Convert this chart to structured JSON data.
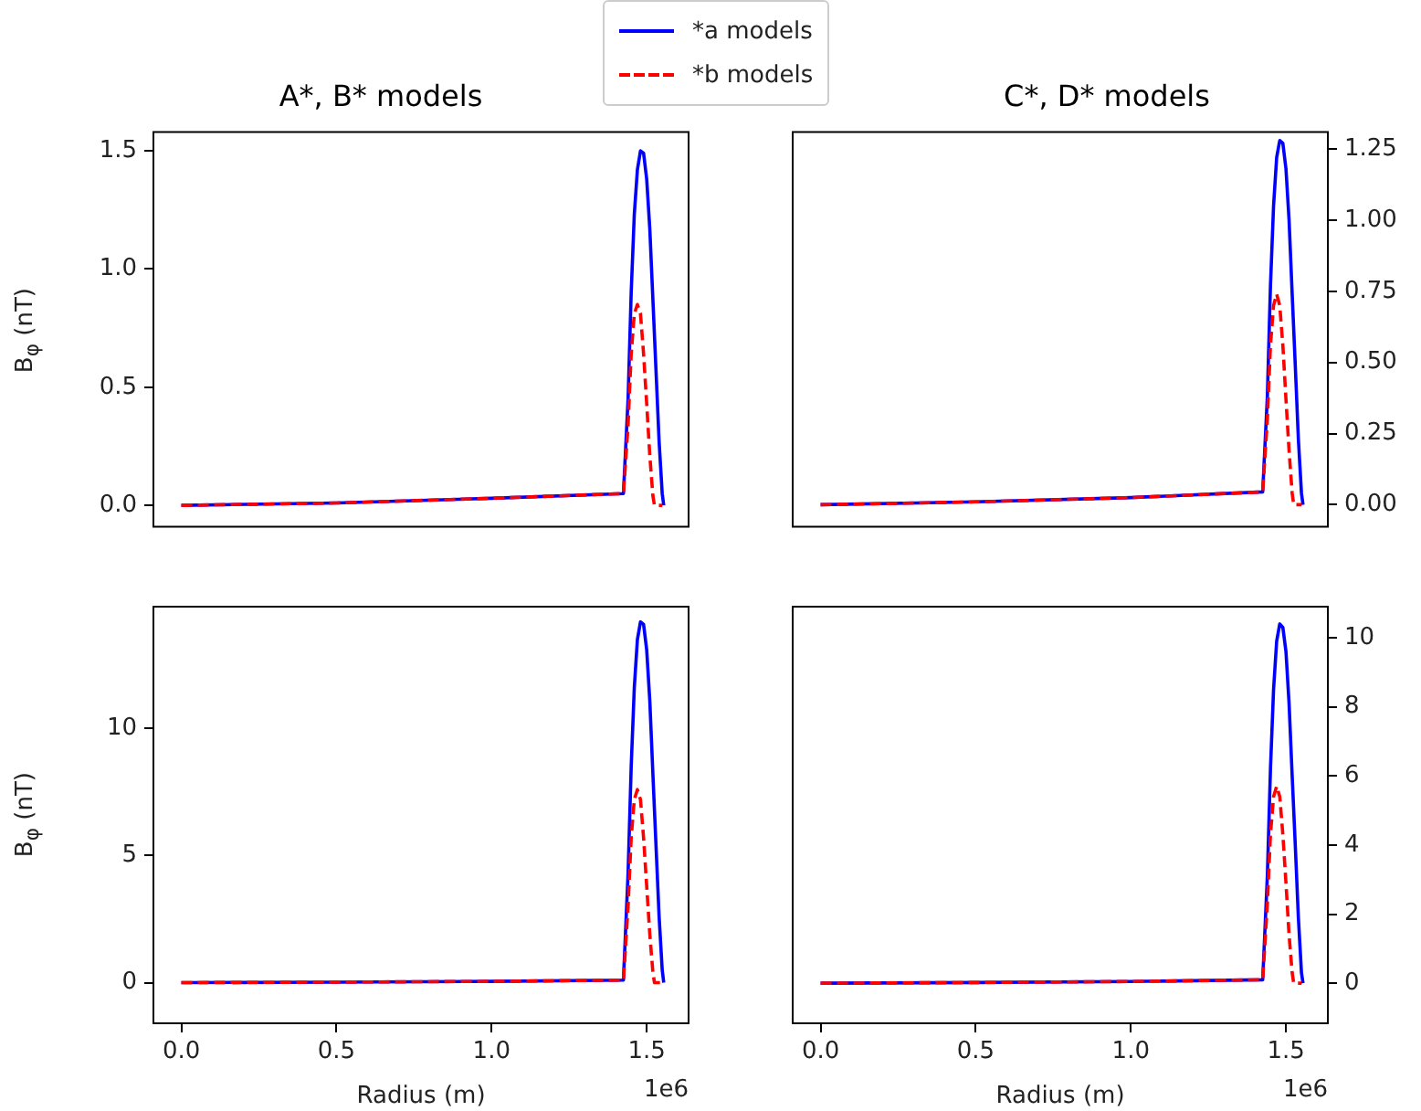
{
  "chart_data": [
    {
      "type": "line",
      "title": "A*, B* models",
      "ylabel": "B$_{φ}$ (nT)",
      "legend": "top",
      "tick_labels": "y",
      "xlim": [
        -0.09,
        1.635
      ],
      "xticks": [
        {
          "value": 0,
          "label": null
        },
        {
          "value": 0.5,
          "label": null
        },
        {
          "value": 1,
          "label": null
        },
        {
          "value": 1.5,
          "label": null
        }
      ],
      "ylim": [
        -0.09,
        1.58
      ],
      "yticks": [
        {
          "value": 0,
          "label": "0.0"
        },
        0.5,
        {
          "value": 1,
          "label": "1.0"
        },
        1.5
      ],
      "series": [
        {
          "name": "*a models",
          "color": "#0000ff",
          "line_style": "solid",
          "x": [
            0,
            0.5,
            1.0,
            1.425,
            1.44,
            1.45,
            1.46,
            1.47,
            1.48,
            1.49,
            1.5,
            1.51,
            1.52,
            1.53,
            1.54,
            1.55,
            1.555
          ],
          "values": [
            0,
            0.01,
            0.03,
            0.05,
            0.45,
            0.9,
            1.23,
            1.42,
            1.5,
            1.49,
            1.38,
            1.17,
            0.87,
            0.57,
            0.27,
            0.05,
            0
          ]
        },
        {
          "name": "*b models",
          "color": "#ff0000",
          "line_style": "dashed",
          "x": [
            0,
            0.5,
            1.0,
            1.425,
            1.44,
            1.45,
            1.46,
            1.47,
            1.48,
            1.49,
            1.5,
            1.51,
            1.52,
            1.525,
            1.55
          ],
          "values": [
            0,
            0.01,
            0.03,
            0.05,
            0.34,
            0.64,
            0.81,
            0.85,
            0.81,
            0.64,
            0.43,
            0.21,
            0.04,
            0,
            0
          ]
        }
      ]
    },
    {
      "type": "line",
      "title": "C*, D* models",
      "tick_labels": "y",
      "xlim": [
        -0.09,
        1.635
      ],
      "xticks": [
        {
          "value": 0,
          "label": null
        },
        {
          "value": 0.5,
          "label": null
        },
        {
          "value": 1,
          "label": null
        },
        {
          "value": 1.5,
          "label": null
        }
      ],
      "ylim": [
        -0.077,
        1.31
      ],
      "yticks": [
        {
          "value": 0,
          "label": "0.00"
        },
        0.25,
        {
          "value": 0.5,
          "label": "0.50"
        },
        0.75,
        {
          "value": 1,
          "label": "1.00"
        },
        1.25
      ],
      "series": [
        {
          "color": "#0000ff",
          "line_style": "solid",
          "x": [
            0,
            0.5,
            1.0,
            1.425,
            1.44,
            1.45,
            1.46,
            1.47,
            1.48,
            1.49,
            1.5,
            1.51,
            1.52,
            1.53,
            1.54,
            1.55,
            1.555
          ],
          "values": [
            0,
            0.01,
            0.025,
            0.045,
            0.38,
            0.77,
            1.05,
            1.22,
            1.28,
            1.27,
            1.18,
            1.0,
            0.74,
            0.49,
            0.23,
            0.04,
            0
          ]
        },
        {
          "color": "#ff0000",
          "line_style": "dashed",
          "x": [
            0,
            0.5,
            1.0,
            1.425,
            1.44,
            1.45,
            1.46,
            1.47,
            1.48,
            1.49,
            1.5,
            1.51,
            1.52,
            1.525,
            1.55
          ],
          "values": [
            0,
            0.01,
            0.025,
            0.045,
            0.3,
            0.56,
            0.7,
            0.74,
            0.7,
            0.56,
            0.37,
            0.19,
            0.04,
            0,
            0
          ]
        }
      ]
    },
    {
      "type": "line",
      "ylabel": "B$_{φ}$ (nT)",
      "xlabel": "Radius (m)",
      "annotations": [
        "1e6"
      ],
      "xlim": [
        -0.09,
        1.635
      ],
      "xticks": [
        {
          "value": 0,
          "label": "0.0"
        },
        {
          "value": 0.5,
          "label": "0.5"
        },
        {
          "value": 1,
          "label": "1.0"
        },
        {
          "value": 1.5,
          "label": "1.5"
        }
      ],
      "ylim": [
        -1.6,
        14.8
      ],
      "yticks": [
        0,
        5,
        10
      ],
      "series": [
        {
          "color": "#0000ff",
          "line_style": "solid",
          "x": [
            0,
            0.5,
            1.0,
            1.425,
            1.44,
            1.45,
            1.46,
            1.47,
            1.48,
            1.49,
            1.5,
            1.51,
            1.52,
            1.53,
            1.54,
            1.55,
            1.555
          ],
          "values": [
            0,
            0.02,
            0.05,
            0.1,
            4.3,
            8.5,
            11.6,
            13.5,
            14.2,
            14.1,
            13.1,
            11.1,
            8.2,
            5.4,
            2.6,
            0.5,
            0
          ]
        },
        {
          "color": "#ff0000",
          "line_style": "dashed",
          "x": [
            0,
            0.5,
            1.0,
            1.425,
            1.44,
            1.45,
            1.46,
            1.47,
            1.48,
            1.49,
            1.5,
            1.51,
            1.52,
            1.525,
            1.55
          ],
          "values": [
            0,
            0.02,
            0.05,
            0.1,
            3.0,
            5.7,
            7.2,
            7.6,
            7.2,
            5.7,
            3.8,
            1.9,
            0.4,
            0,
            0
          ]
        }
      ]
    },
    {
      "type": "line",
      "xlabel": "Radius (m)",
      "annotations": [
        "1e6"
      ],
      "xlim": [
        -0.09,
        1.635
      ],
      "xticks": [
        {
          "value": 0,
          "label": "0.0"
        },
        {
          "value": 0.5,
          "label": "0.5"
        },
        {
          "value": 1,
          "label": "1.0"
        },
        {
          "value": 1.5,
          "label": "1.5"
        }
      ],
      "ylim": [
        -1.16,
        10.9
      ],
      "yticks": [
        0,
        2,
        4,
        6,
        8,
        10
      ],
      "series": [
        {
          "color": "#0000ff",
          "line_style": "solid",
          "x": [
            0,
            0.5,
            1.0,
            1.425,
            1.44,
            1.45,
            1.46,
            1.47,
            1.48,
            1.49,
            1.5,
            1.51,
            1.52,
            1.53,
            1.54,
            1.55,
            1.555
          ],
          "values": [
            0,
            0.02,
            0.05,
            0.1,
            3.1,
            6.2,
            8.5,
            9.9,
            10.4,
            10.3,
            9.6,
            8.1,
            6.0,
            4.0,
            1.9,
            0.3,
            0
          ]
        },
        {
          "color": "#ff0000",
          "line_style": "dashed",
          "x": [
            0,
            0.5,
            1.0,
            1.425,
            1.44,
            1.45,
            1.46,
            1.47,
            1.48,
            1.49,
            1.5,
            1.51,
            1.52,
            1.525,
            1.55
          ],
          "values": [
            0,
            0.02,
            0.05,
            0.1,
            2.3,
            4.3,
            5.4,
            5.7,
            5.4,
            4.3,
            2.9,
            1.4,
            0.3,
            0,
            0
          ]
        }
      ]
    }
  ]
}
